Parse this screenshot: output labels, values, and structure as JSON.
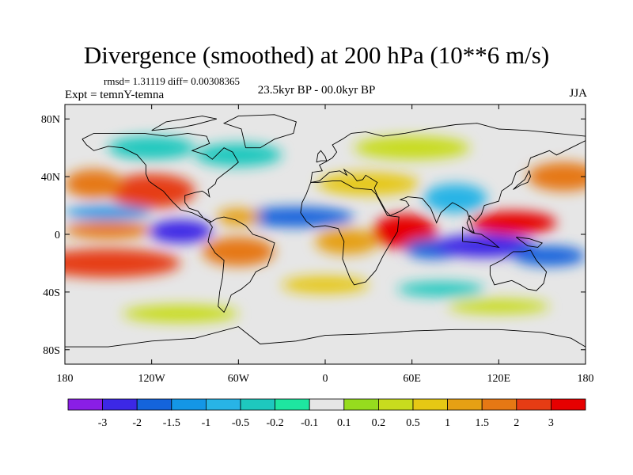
{
  "figure": {
    "title": "Divergence (smoothed) at 200 hPa (10**6 m/s)",
    "stats": "rmsd= 1.31119 diff= 0.00308365",
    "expt": "Expt = temnY-temna",
    "period": "23.5kyr BP - 00.0kyr BP",
    "season": "JJA"
  },
  "map": {
    "projection": "cylindrical-equidistant",
    "lon_range": [
      -180,
      180
    ],
    "lat_range": [
      -90,
      90
    ],
    "x_ticks": [
      {
        "lon": -180,
        "label": "180"
      },
      {
        "lon": -120,
        "label": "120W"
      },
      {
        "lon": -60,
        "label": "60W"
      },
      {
        "lon": 0,
        "label": "0"
      },
      {
        "lon": 60,
        "label": "60E"
      },
      {
        "lon": 120,
        "label": "120E"
      },
      {
        "lon": 180,
        "label": "180"
      }
    ],
    "y_ticks": [
      {
        "lat": 80,
        "label": "80N"
      },
      {
        "lat": 40,
        "label": "40N"
      },
      {
        "lat": 0,
        "label": "0"
      },
      {
        "lat": -40,
        "label": "40S"
      },
      {
        "lat": -80,
        "label": "80S"
      }
    ]
  },
  "colorbar": {
    "colors": [
      "#8a1ee6",
      "#3c28e6",
      "#1464dc",
      "#1496e6",
      "#28b4e6",
      "#1ec8be",
      "#1ee6a0",
      "#e6e6e6",
      "#96dc1e",
      "#c8dc1e",
      "#e6c814",
      "#e6a014",
      "#e67814",
      "#e63c14",
      "#e60000"
    ],
    "labels": [
      "-3",
      "-2",
      "-1.5",
      "-1",
      "-0.5",
      "-0.2",
      "-0.1",
      "0.1",
      "0.2",
      "0.5",
      "1",
      "1.5",
      "2",
      "3"
    ]
  },
  "field_anomalies": [
    {
      "lon": -150,
      "lat": -20,
      "rlon": 50,
      "rlat": 10,
      "v": 2.2
    },
    {
      "lon": -120,
      "lat": 30,
      "rlon": 30,
      "rlat": 12,
      "v": 2.3
    },
    {
      "lon": -160,
      "lat": 35,
      "rlon": 20,
      "rlat": 10,
      "v": 1.5
    },
    {
      "lon": -150,
      "lat": 3,
      "rlon": 30,
      "rlat": 6,
      "v": 1.6
    },
    {
      "lon": -100,
      "lat": 2,
      "rlon": 22,
      "rlat": 8,
      "v": -3.0
    },
    {
      "lon": -150,
      "lat": 15,
      "rlon": 30,
      "rlat": 5,
      "v": -1.2
    },
    {
      "lon": -60,
      "lat": -12,
      "rlon": 25,
      "rlat": 10,
      "v": 1.6
    },
    {
      "lon": -20,
      "lat": 12,
      "rlon": 40,
      "rlat": 7,
      "v": -1.6
    },
    {
      "lon": -60,
      "lat": 12,
      "rlon": 15,
      "rlat": 6,
      "v": 1.2
    },
    {
      "lon": 15,
      "lat": -5,
      "rlon": 22,
      "rlat": 9,
      "v": 1.3
    },
    {
      "lon": 55,
      "lat": 2,
      "rlon": 22,
      "rlat": 12,
      "v": 3.0
    },
    {
      "lon": 75,
      "lat": -10,
      "rlon": 20,
      "rlat": 7,
      "v": -1.6
    },
    {
      "lon": 110,
      "lat": -8,
      "rlon": 35,
      "rlat": 8,
      "v": -3.0
    },
    {
      "lon": 130,
      "lat": 8,
      "rlon": 30,
      "rlat": 8,
      "v": 3.2
    },
    {
      "lon": 155,
      "lat": -15,
      "rlon": 25,
      "rlat": 7,
      "v": -2.0
    },
    {
      "lon": 90,
      "lat": 25,
      "rlon": 22,
      "rlat": 10,
      "v": -0.6
    },
    {
      "lon": 30,
      "lat": 35,
      "rlon": 35,
      "rlat": 8,
      "v": 0.7
    },
    {
      "lon": 0,
      "lat": -35,
      "rlon": 30,
      "rlat": 6,
      "v": 0.5
    },
    {
      "lon": 80,
      "lat": -38,
      "rlon": 30,
      "rlat": 5,
      "v": -0.5
    },
    {
      "lon": 165,
      "lat": 40,
      "rlon": 25,
      "rlat": 10,
      "v": 1.5
    },
    {
      "lon": -60,
      "lat": 55,
      "rlon": 30,
      "rlat": 8,
      "v": -0.5
    },
    {
      "lon": 60,
      "lat": 60,
      "rlon": 40,
      "rlat": 8,
      "v": 0.4
    },
    {
      "lon": -100,
      "lat": -55,
      "rlon": 40,
      "rlat": 6,
      "v": 0.3
    },
    {
      "lon": 120,
      "lat": -50,
      "rlon": 35,
      "rlat": 5,
      "v": 0.3
    },
    {
      "lon": -120,
      "lat": 60,
      "rlon": 30,
      "rlat": 8,
      "v": -0.3
    }
  ]
}
